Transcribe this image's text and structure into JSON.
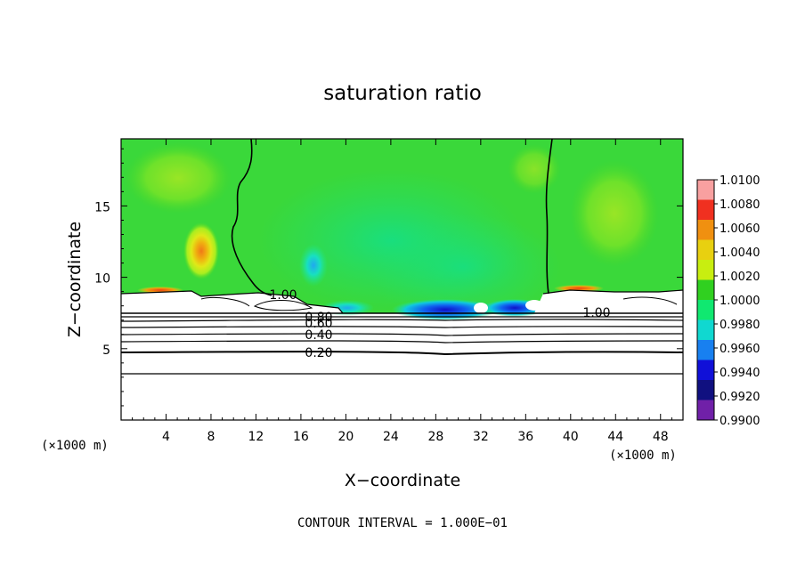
{
  "chart_data": {
    "type": "heatmap",
    "title": "saturation ratio",
    "xlabel": "X−coordinate",
    "ylabel": "Z−coordinate",
    "x_unit_left": "(×1000 m)",
    "x_unit_right": "(×1000 m)",
    "xlim": [
      0,
      50
    ],
    "ylim": [
      0,
      19.7
    ],
    "x_ticks": [
      4,
      8,
      12,
      16,
      20,
      24,
      28,
      32,
      36,
      40,
      44,
      48
    ],
    "y_ticks": [
      5,
      10,
      15
    ],
    "x_tick_labels": [
      "4",
      "8",
      "12",
      "16",
      "20",
      "24",
      "28",
      "32",
      "36",
      "40",
      "44",
      "48"
    ],
    "y_tick_labels": [
      "5",
      "10",
      "15"
    ],
    "contour_labels": [
      "1.00",
      "0.80",
      "0.60",
      "0.40",
      "0.20",
      "1.00"
    ],
    "colorbar": {
      "labels": [
        "1.0100",
        "1.0080",
        "1.0060",
        "1.0040",
        "1.0020",
        "1.0000",
        "0.9980",
        "0.9960",
        "0.9940",
        "0.9920",
        "0.9900"
      ],
      "min": 0.99,
      "max": 1.01,
      "colors": [
        "#f8a0a0",
        "#f03020",
        "#f09010",
        "#e8d010",
        "#c8ee10",
        "#30d020",
        "#10e870",
        "#10d8d0",
        "#1880f0",
        "#1010d8",
        "#101080",
        "#7020a8"
      ]
    },
    "footer": "CONTOUR INTERVAL = 1.000E−01",
    "colors": {
      "background_field": "#3ad83a",
      "high": "#f08018",
      "low": "#1010d0"
    }
  }
}
